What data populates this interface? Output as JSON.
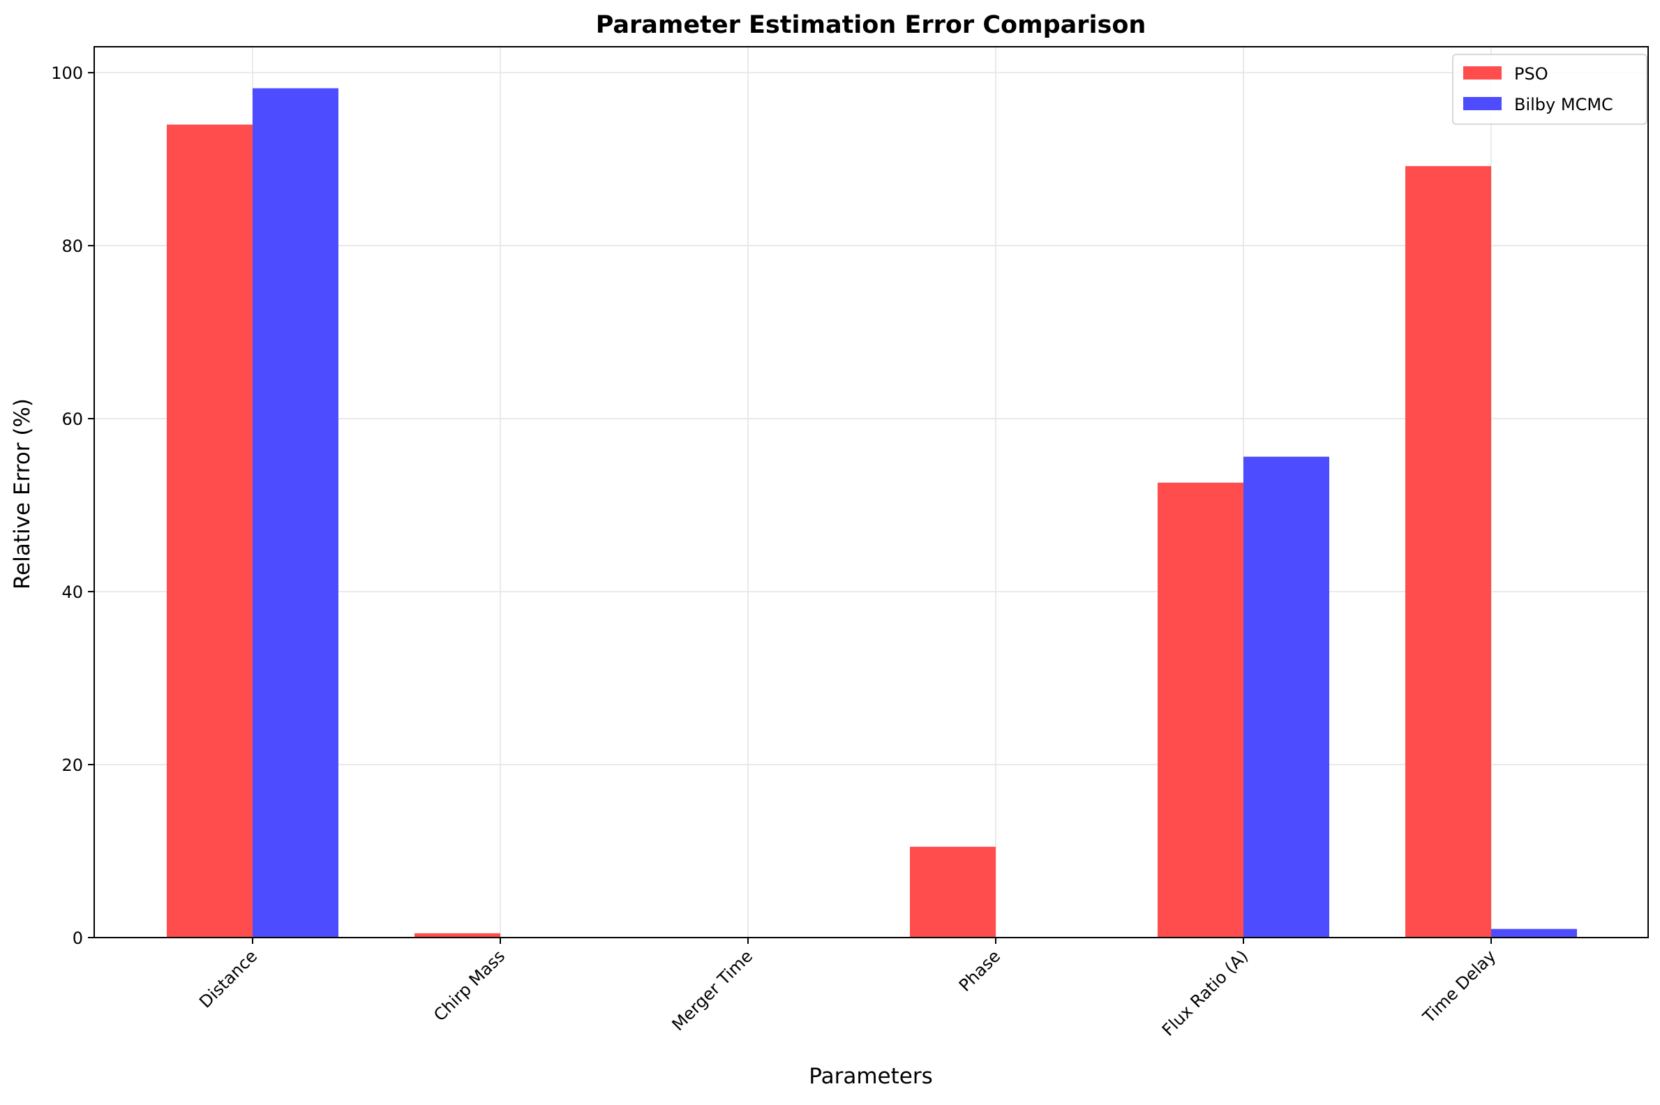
{
  "chart_data": {
    "type": "bar",
    "title": "Parameter Estimation Error Comparison",
    "xlabel": "Parameters",
    "ylabel": "Relative Error (%)",
    "categories": [
      "Distance",
      "Chirp Mass",
      "Merger Time",
      "Phase",
      "Flux Ratio (A)",
      "Time Delay"
    ],
    "series": [
      {
        "name": "PSO",
        "color": "#ff4d4d",
        "values": [
          94.0,
          0.5,
          0.0,
          10.5,
          52.6,
          89.2
        ]
      },
      {
        "name": "Bilby MCMC",
        "color": "#4d4dff",
        "values": [
          98.2,
          0.0,
          0.0,
          0.0,
          55.6,
          1.0
        ]
      }
    ],
    "ylim": [
      0,
      103
    ],
    "yticks": [
      0,
      20,
      40,
      60,
      80,
      100
    ],
    "grid": true,
    "legend": "top-right",
    "x_tick_rotation": 45
  }
}
